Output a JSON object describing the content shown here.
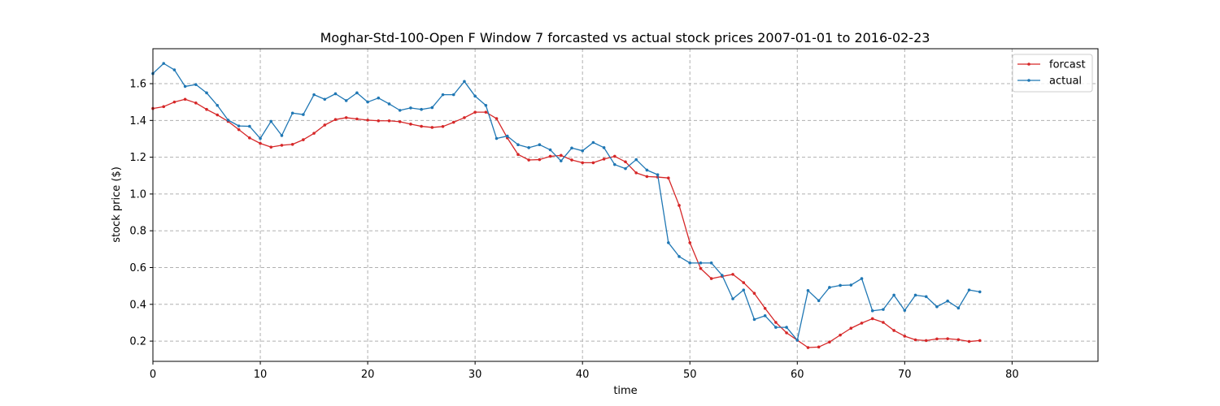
{
  "chart_data": {
    "type": "line",
    "title": "Moghar-Std-100-Open F Window 7 forcasted vs actual stock prices 2007-01-01 to 2016-02-23",
    "xlabel": "time",
    "ylabel": "stock price ($)",
    "xlim": [
      0,
      88
    ],
    "ylim": [
      0.09,
      1.79
    ],
    "xticks": [
      0,
      10,
      20,
      30,
      40,
      50,
      60,
      70,
      80
    ],
    "yticks": [
      0.2,
      0.4,
      0.6,
      0.8,
      1.0,
      1.2,
      1.4,
      1.6
    ],
    "xtick_labels": [
      "0",
      "10",
      "20",
      "30",
      "40",
      "50",
      "60",
      "70",
      "80"
    ],
    "ytick_labels": [
      "0.2",
      "0.4",
      "0.6",
      "0.8",
      "1.0",
      "1.2",
      "1.4",
      "1.6"
    ],
    "grid": true,
    "legend_position": "top-right",
    "series": [
      {
        "name": "forcast",
        "color": "#d62728",
        "values": [
          1.465,
          1.475,
          1.5,
          1.515,
          1.495,
          1.46,
          1.43,
          1.395,
          1.35,
          1.305,
          1.275,
          1.255,
          1.265,
          1.27,
          1.295,
          1.33,
          1.375,
          1.405,
          1.415,
          1.408,
          1.402,
          1.398,
          1.398,
          1.393,
          1.38,
          1.368,
          1.362,
          1.367,
          1.39,
          1.415,
          1.445,
          1.445,
          1.41,
          1.305,
          1.215,
          1.185,
          1.187,
          1.205,
          1.21,
          1.185,
          1.17,
          1.17,
          1.19,
          1.205,
          1.175,
          1.115,
          1.095,
          1.092,
          1.087,
          0.938,
          0.735,
          0.595,
          0.54,
          0.552,
          0.563,
          0.518,
          0.46,
          0.378,
          0.302,
          0.245,
          0.205,
          0.165,
          0.168,
          0.195,
          0.233,
          0.27,
          0.298,
          0.322,
          0.302,
          0.258,
          0.227,
          0.207,
          0.203,
          0.212,
          0.213,
          0.208,
          0.198,
          0.203
        ]
      },
      {
        "name": "actual",
        "color": "#1f77b4",
        "values": [
          1.655,
          1.71,
          1.675,
          1.585,
          1.595,
          1.55,
          1.482,
          1.402,
          1.37,
          1.368,
          1.302,
          1.395,
          1.318,
          1.44,
          1.432,
          1.54,
          1.515,
          1.545,
          1.508,
          1.55,
          1.5,
          1.522,
          1.49,
          1.455,
          1.468,
          1.46,
          1.47,
          1.54,
          1.54,
          1.612,
          1.532,
          1.482,
          1.302,
          1.315,
          1.268,
          1.252,
          1.268,
          1.24,
          1.18,
          1.25,
          1.235,
          1.28,
          1.252,
          1.16,
          1.138,
          1.187,
          1.13,
          1.105,
          0.735,
          0.66,
          0.625,
          0.625,
          0.625,
          0.558,
          0.43,
          0.478,
          0.318,
          0.338,
          0.275,
          0.275,
          0.205,
          0.475,
          0.42,
          0.492,
          0.503,
          0.505,
          0.54,
          0.365,
          0.372,
          0.45,
          0.367,
          0.45,
          0.442,
          0.387,
          0.418,
          0.38,
          0.478,
          0.468
        ]
      }
    ]
  }
}
